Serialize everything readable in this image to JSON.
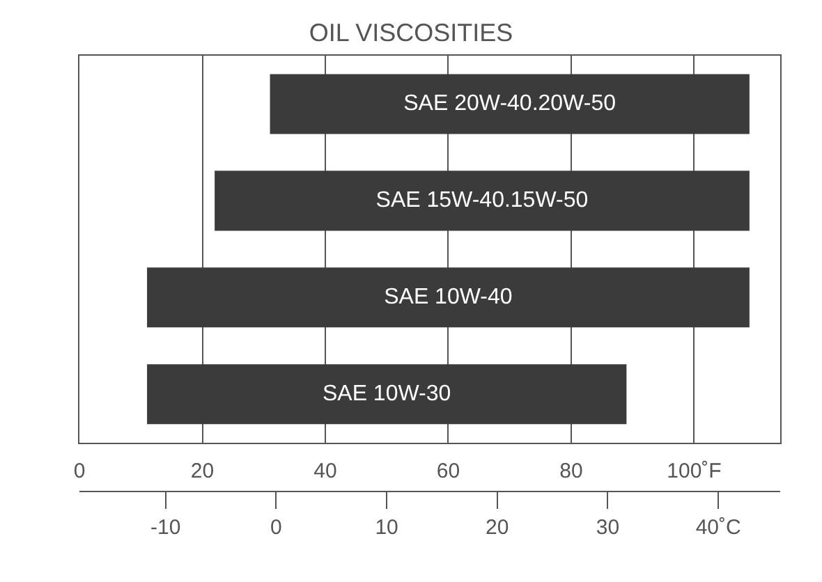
{
  "chart_data": {
    "type": "bar",
    "orientation": "horizontal",
    "title": "OIL VISCOSITIES",
    "categories": [
      "SAE 20W-40.20W-50",
      "SAE 15W-40.15W-50",
      "SAE 10W-40",
      "SAE 10W-30"
    ],
    "base": [
      31,
      22,
      11,
      11
    ],
    "values": [
      78,
      87,
      98,
      78
    ],
    "color": "#3b3b3b",
    "xlim": [
      0,
      114
    ],
    "xticks": [
      0,
      20,
      40,
      60,
      80,
      {
        "value": 100,
        "label": "100˚F"
      }
    ],
    "x2lim": [
      -17.8,
      45.6
    ],
    "x2ticks": [
      -10,
      0,
      10,
      20,
      30,
      {
        "value": 40,
        "label": "40˚C"
      }
    ],
    "grid": "x",
    "tick_labels": "x"
  }
}
